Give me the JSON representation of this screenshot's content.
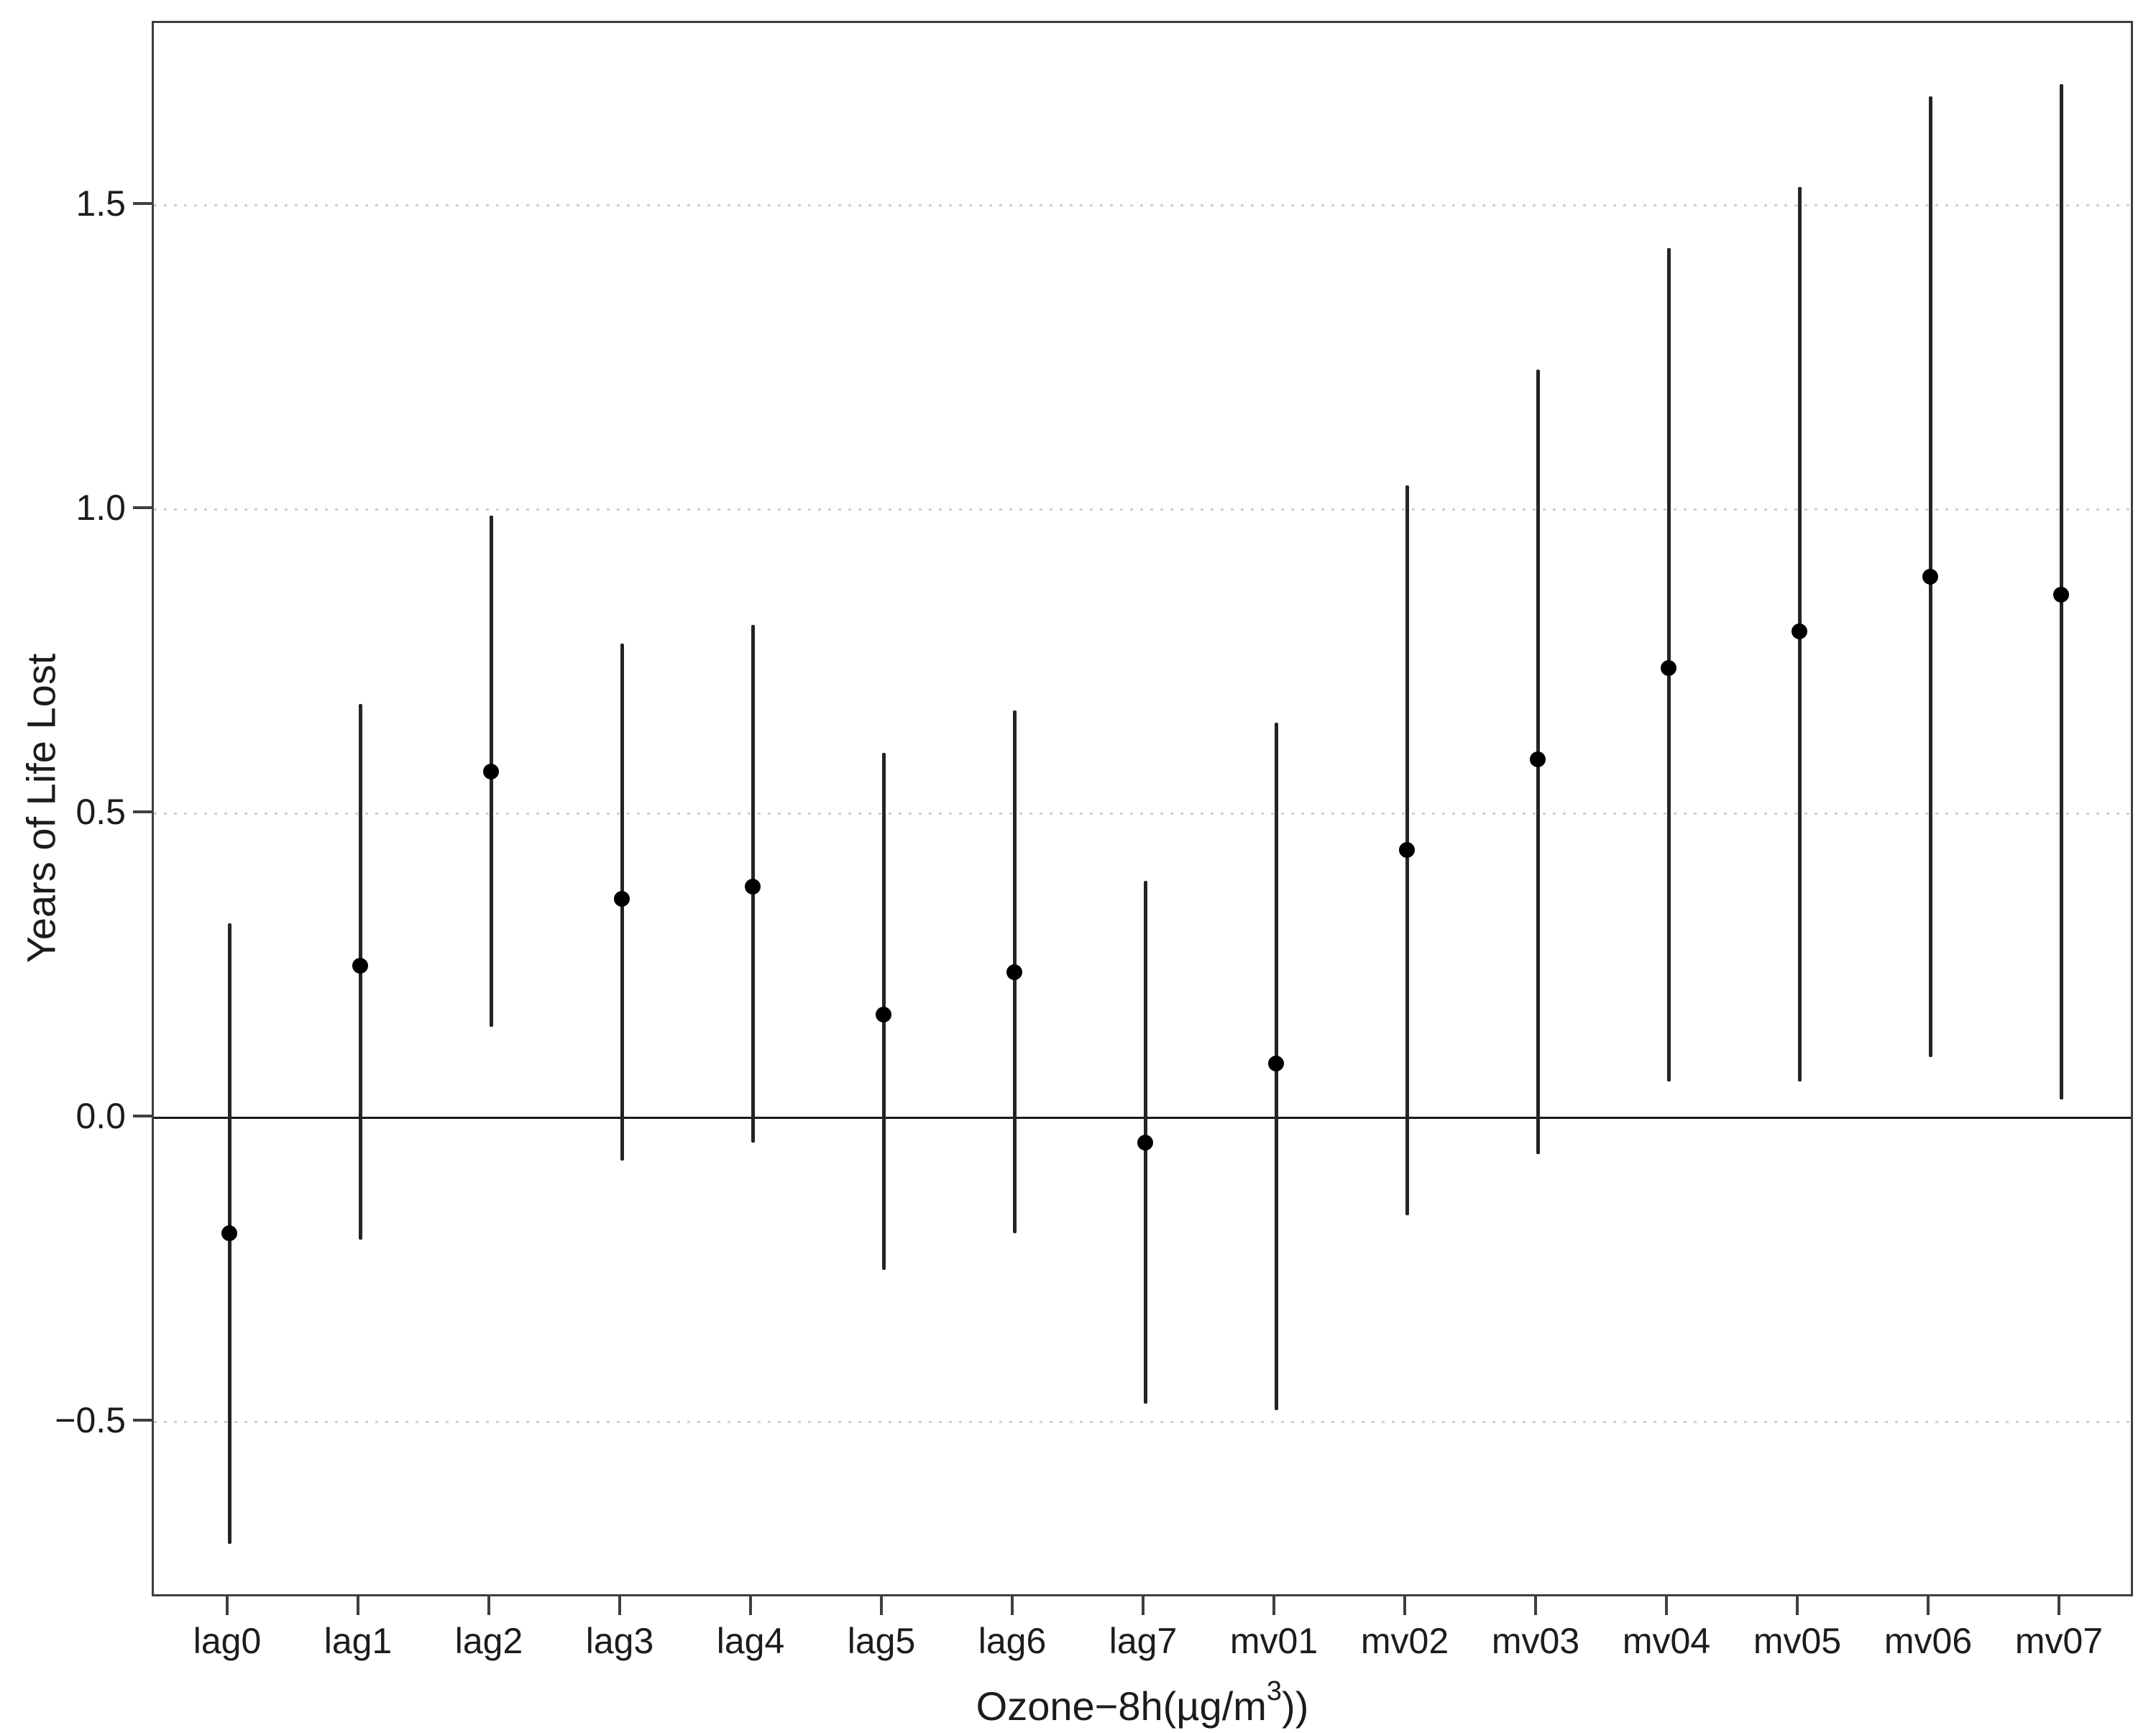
{
  "chart_data": {
    "type": "scatter",
    "subtype": "point-range-errorbar",
    "title": "",
    "ylabel": "Years of Life Lost",
    "xlabel": {
      "pre": "Ozone−8h(µg/m",
      "sup": "3",
      "post": "))"
    },
    "categories": [
      "lag0",
      "lag1",
      "lag2",
      "lag3",
      "lag4",
      "lag5",
      "lag6",
      "lag7",
      "mv01",
      "mv02",
      "mv03",
      "mv04",
      "mv05",
      "mv06",
      "mv07"
    ],
    "points": [
      {
        "category": "lag0",
        "estimate": -0.19,
        "ci_low": -0.7,
        "ci_high": 0.32
      },
      {
        "category": "lag1",
        "estimate": 0.25,
        "ci_low": -0.2,
        "ci_high": 0.68
      },
      {
        "category": "lag2",
        "estimate": 0.57,
        "ci_low": 0.15,
        "ci_high": 0.99
      },
      {
        "category": "lag3",
        "estimate": 0.36,
        "ci_low": -0.07,
        "ci_high": 0.78
      },
      {
        "category": "lag4",
        "estimate": 0.38,
        "ci_low": -0.04,
        "ci_high": 0.81
      },
      {
        "category": "lag5",
        "estimate": 0.17,
        "ci_low": -0.25,
        "ci_high": 0.6
      },
      {
        "category": "lag6",
        "estimate": 0.24,
        "ci_low": -0.19,
        "ci_high": 0.67
      },
      {
        "category": "lag7",
        "estimate": -0.04,
        "ci_low": -0.47,
        "ci_high": 0.39
      },
      {
        "category": "mv01",
        "estimate": 0.09,
        "ci_low": -0.48,
        "ci_high": 0.65
      },
      {
        "category": "mv02",
        "estimate": 0.44,
        "ci_low": -0.16,
        "ci_high": 1.04
      },
      {
        "category": "mv03",
        "estimate": 0.59,
        "ci_low": -0.06,
        "ci_high": 1.23
      },
      {
        "category": "mv04",
        "estimate": 0.74,
        "ci_low": 0.06,
        "ci_high": 1.43
      },
      {
        "category": "mv05",
        "estimate": 0.8,
        "ci_low": 0.06,
        "ci_high": 1.53
      },
      {
        "category": "mv06",
        "estimate": 0.89,
        "ci_low": 0.1,
        "ci_high": 1.68
      },
      {
        "category": "mv07",
        "estimate": 0.86,
        "ci_low": 0.03,
        "ci_high": 1.7
      }
    ],
    "yticks": [
      {
        "value": 1.5,
        "label": "1.5",
        "grid": true
      },
      {
        "value": 1.0,
        "label": "1.0",
        "grid": true
      },
      {
        "value": 0.5,
        "label": "0.5",
        "grid": true
      },
      {
        "value": 0.0,
        "label": "0.0",
        "grid": false
      },
      {
        "value": -0.5,
        "label": "−0.5",
        "grid": true
      }
    ],
    "ylim": [
      -0.79,
      1.8
    ],
    "zero_line": 0,
    "legend": "none",
    "grid_style": "dotted-horizontal"
  },
  "colors": {
    "point": "#000000",
    "error_bar": "#242424",
    "axis": "#3f3f3f",
    "grid": "#cfcfcf",
    "text": "#1c1c1c",
    "background": "#ffffff"
  }
}
